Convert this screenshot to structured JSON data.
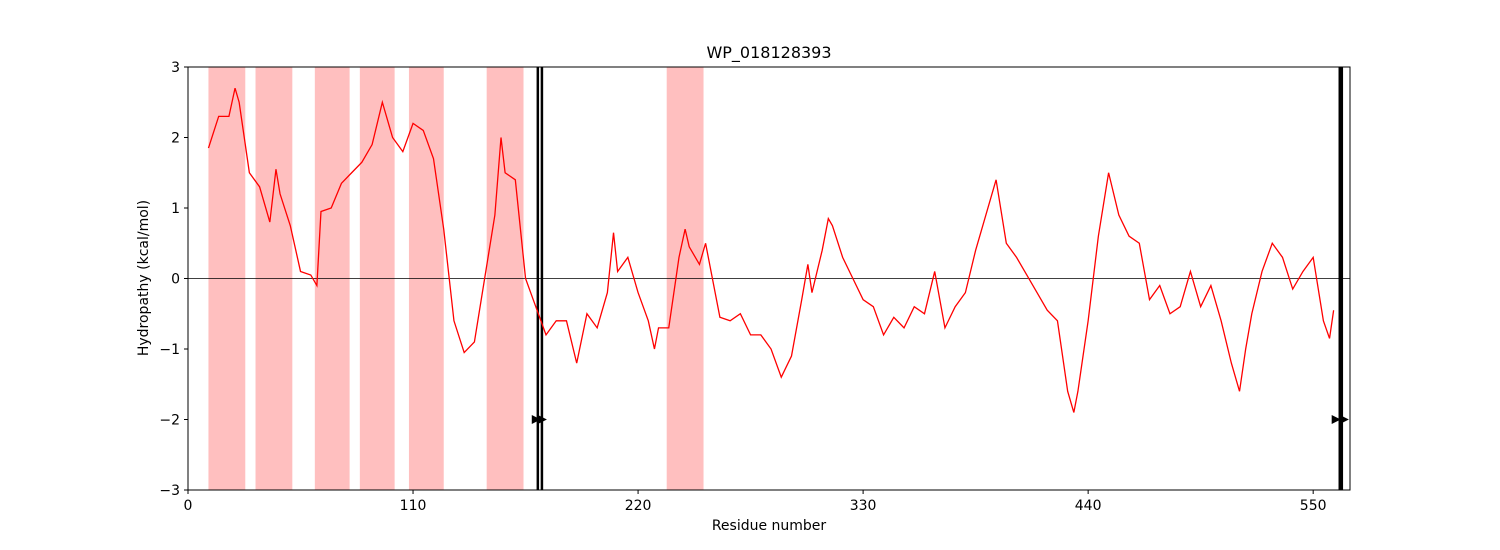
{
  "chart_data": {
    "type": "line",
    "title": "WP_018128393",
    "x_label": "Residue number",
    "y_label": "Hydropathy (kcal/mol)",
    "color": "#ff0000",
    "x": [
      10,
      15,
      20,
      23,
      25,
      30,
      35,
      40,
      43,
      45,
      50,
      55,
      60,
      63,
      65,
      70,
      75,
      80,
      85,
      90,
      95,
      100,
      105,
      110,
      115,
      120,
      125,
      130,
      135,
      140,
      145,
      150,
      153,
      155,
      160,
      165,
      170,
      175,
      180,
      185,
      190,
      195,
      200,
      205,
      208,
      210,
      215,
      220,
      225,
      228,
      230,
      235,
      240,
      243,
      245,
      250,
      253,
      255,
      260,
      265,
      270,
      275,
      280,
      285,
      290,
      295,
      300,
      303,
      305,
      310,
      313,
      315,
      320,
      325,
      330,
      335,
      340,
      345,
      350,
      355,
      360,
      365,
      370,
      375,
      380,
      385,
      390,
      395,
      400,
      405,
      410,
      415,
      420,
      425,
      430,
      433,
      435,
      440,
      445,
      450,
      455,
      460,
      465,
      470,
      475,
      480,
      485,
      490,
      495,
      500,
      505,
      510,
      514,
      517,
      520,
      525,
      530,
      535,
      540,
      545,
      550,
      555,
      558,
      560
    ],
    "values": [
      1.85,
      2.3,
      2.3,
      2.7,
      2.5,
      1.5,
      1.3,
      0.8,
      1.55,
      1.2,
      0.75,
      0.1,
      0.05,
      -0.1,
      0.95,
      1.0,
      1.35,
      1.5,
      1.65,
      1.9,
      2.5,
      2.0,
      1.8,
      2.2,
      2.1,
      1.7,
      0.7,
      -0.6,
      -1.05,
      -0.9,
      0.0,
      0.9,
      2.0,
      1.5,
      1.4,
      0.0,
      -0.4,
      -0.8,
      -0.6,
      -0.6,
      -1.2,
      -0.5,
      -0.7,
      -0.2,
      0.65,
      0.1,
      0.3,
      -0.2,
      -0.6,
      -1.0,
      -0.7,
      -0.7,
      0.3,
      0.7,
      0.45,
      0.2,
      0.5,
      0.2,
      -0.55,
      -0.6,
      -0.5,
      -0.8,
      -0.8,
      -1.0,
      -1.4,
      -1.1,
      -0.3,
      0.2,
      -0.2,
      0.4,
      0.85,
      0.75,
      0.3,
      0.0,
      -0.3,
      -0.4,
      -0.8,
      -0.55,
      -0.7,
      -0.4,
      -0.5,
      0.1,
      -0.7,
      -0.4,
      -0.2,
      0.4,
      0.9,
      1.4,
      0.5,
      0.3,
      0.05,
      -0.2,
      -0.45,
      -0.6,
      -1.6,
      -1.9,
      -1.6,
      -0.6,
      0.6,
      1.5,
      0.9,
      0.6,
      0.5,
      -0.3,
      -0.1,
      -0.5,
      -0.4,
      0.1,
      -0.4,
      -0.1,
      -0.6,
      -1.2,
      -1.6,
      -1.0,
      -0.5,
      0.1,
      0.5,
      0.3,
      -0.15,
      0.1,
      0.3,
      -0.6,
      -0.85,
      -0.45
    ],
    "regions": [
      [
        10,
        28
      ],
      [
        33,
        51
      ],
      [
        62,
        79
      ],
      [
        84,
        101
      ],
      [
        108,
        125
      ],
      [
        146,
        164
      ],
      [
        234,
        252
      ]
    ],
    "region_color": "#ffbfbf",
    "vlines": [
      171,
      173,
      563,
      564
    ],
    "markers": {
      "x": [
        170,
        173,
        561,
        565
      ],
      "y": [
        -2,
        -2,
        -2,
        -2
      ],
      "color": "#000000"
    },
    "zero_line": true,
    "xlim": [
      0,
      568
    ],
    "ylim": [
      -3,
      3
    ],
    "xticks": [
      0,
      110,
      220,
      330,
      440,
      550
    ],
    "yticks": [
      {
        "value": -3,
        "label": "−3"
      },
      {
        "value": -2,
        "label": "−2"
      },
      {
        "value": -1,
        "label": "−1"
      },
      0,
      1,
      2,
      3
    ]
  }
}
